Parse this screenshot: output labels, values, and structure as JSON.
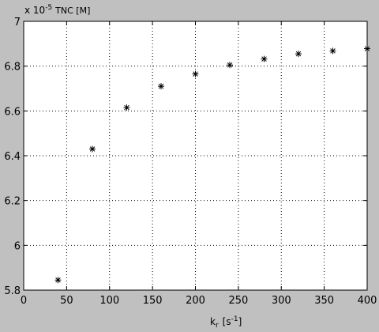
{
  "chart_data": {
    "type": "scatter",
    "title": "",
    "xlabel": "k",
    "xlabel_sub": "r",
    "xlabel_unit_prefix": "[s",
    "xlabel_unit_sup": "-1",
    "xlabel_unit_suffix": "]",
    "ylabel": "",
    "scale_factor": {
      "prefix": "x 10",
      "exponent": "-5",
      "suffix": "TNC [M]"
    },
    "xlim": [
      0,
      400
    ],
    "ylim": [
      5.8,
      7.0
    ],
    "xticks": [
      0,
      50,
      100,
      150,
      200,
      250,
      300,
      350,
      400
    ],
    "xtick_labels": [
      "0",
      "50",
      "100",
      "150",
      "200",
      "250",
      "300",
      "350",
      "400"
    ],
    "yticks": [
      5.8,
      6.0,
      6.2,
      6.4,
      6.6,
      6.8,
      7.0
    ],
    "ytick_labels": [
      "5.8",
      "6",
      "6.2",
      "6.4",
      "6.6",
      "6.8",
      "7"
    ],
    "grid": true,
    "marker": "*",
    "series": [
      {
        "x": [
          40,
          80,
          120,
          160,
          200,
          240,
          280,
          320,
          360,
          400
        ],
        "y": [
          5.845,
          6.43,
          6.615,
          6.71,
          6.765,
          6.805,
          6.832,
          6.855,
          6.868,
          6.878
        ]
      }
    ]
  }
}
